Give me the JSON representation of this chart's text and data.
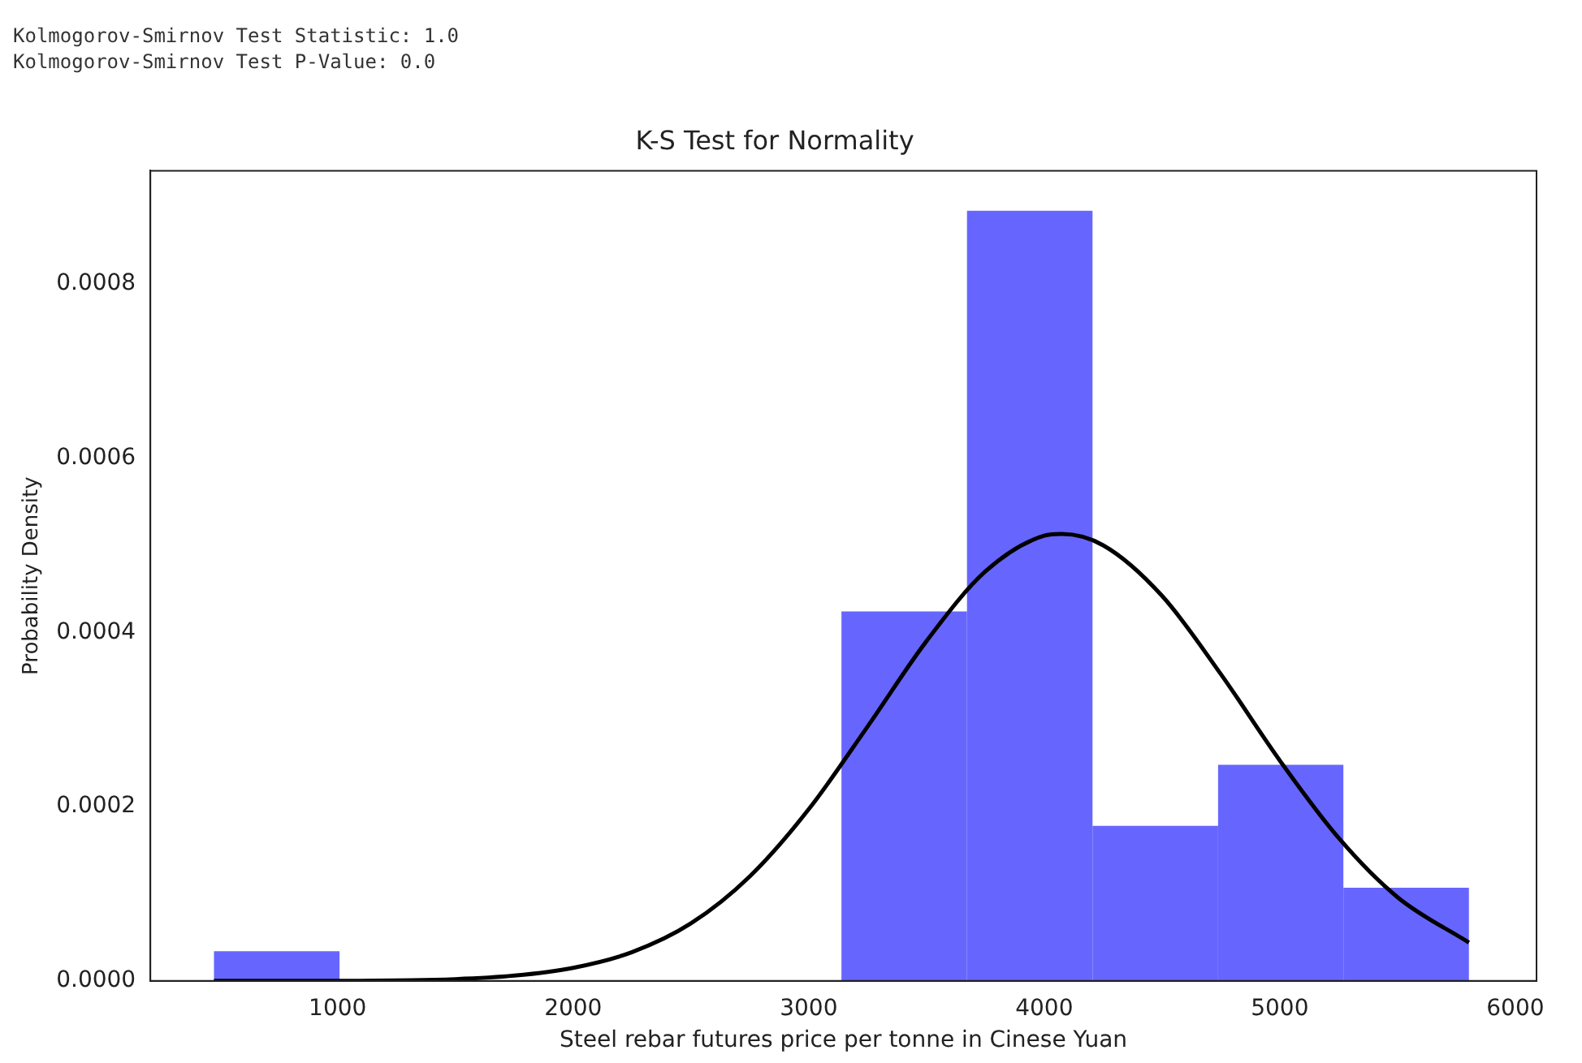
{
  "chart_data": {
    "type": "histogram",
    "title": "K-S Test for Normality",
    "xlabel": "Steel rebar futures price per tonne in Cinese Yuan",
    "ylabel": "Probability Density",
    "annotations": [
      "Kolmogorov-Smirnov Test Statistic: 1.0",
      "Kolmogorov-Smirnov Test P-Value: 0.0"
    ],
    "series": [
      {
        "color": "#6666ff",
        "bins": [
          475,
          1008,
          1541,
          2074,
          2606,
          3139,
          3672,
          4205,
          4738,
          5270,
          5803
        ],
        "values": [
          3.4e-05,
          0,
          0,
          0,
          0,
          0.000424,
          0.000884,
          0.000178,
          0.000248,
          0.000107
        ]
      },
      {
        "type": "line",
        "color": "#000000",
        "x": [
          475,
          1000,
          1500,
          1750,
          2000,
          2250,
          2500,
          2750,
          3000,
          3250,
          3500,
          3750,
          4000,
          4075,
          4250,
          4500,
          4750,
          5000,
          5250,
          5500,
          5803
        ],
        "values": [
          0,
          0,
          2e-06,
          6e-06,
          1.5e-05,
          3.3e-05,
          6.6e-05,
          0.00012,
          0.000197,
          0.000292,
          0.00039,
          0.00047,
          0.000511,
          0.000513,
          0.0005,
          0.000442,
          0.000352,
          0.000253,
          0.000164,
          9.6e-05,
          4.4e-05
        ]
      }
    ],
    "xlim": [
      205,
      6090
    ],
    "xticks": [
      1000,
      2000,
      3000,
      4000,
      5000,
      6000
    ],
    "ylim": [
      0,
      0.00093
    ],
    "yticks": [
      {
        "value": 0,
        "label": "0.0000"
      },
      {
        "value": 0.0002,
        "label": "0.0002"
      },
      {
        "value": 0.0004,
        "label": "0.0004"
      },
      {
        "value": 0.0006,
        "label": "0.0006"
      },
      {
        "value": 0.0008,
        "label": "0.0008"
      }
    ],
    "grid": false,
    "legend": false
  }
}
